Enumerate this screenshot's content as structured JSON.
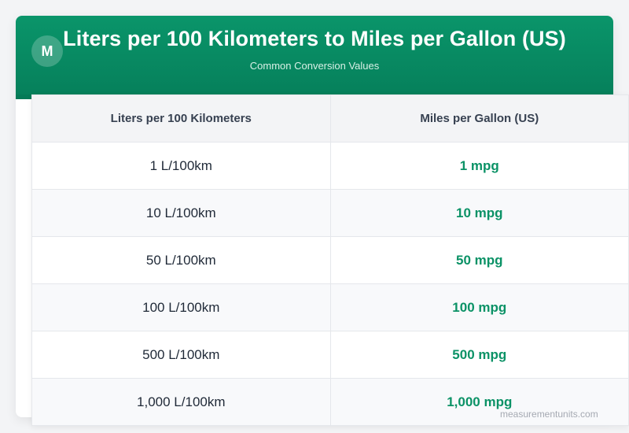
{
  "header": {
    "logo_letter": "M",
    "title": "Liters per 100 Kilometers to Miles per Gallon (US)",
    "subtitle": "Common Conversion Values",
    "accent_color": "#0a956a"
  },
  "table": {
    "columns": [
      "Liters per 100 Kilometers",
      "Miles per Gallon (US)"
    ],
    "rows": [
      {
        "lkm": "1 L/100km",
        "mpg": "1 mpg"
      },
      {
        "lkm": "10 L/100km",
        "mpg": "10 mpg"
      },
      {
        "lkm": "50 L/100km",
        "mpg": "50 mpg"
      },
      {
        "lkm": "100 L/100km",
        "mpg": "100 mpg"
      },
      {
        "lkm": "500 L/100km",
        "mpg": "500 mpg"
      },
      {
        "lkm": "1,000 L/100km",
        "mpg": "1,000 mpg"
      }
    ]
  },
  "footer": {
    "watermark": "measurementunits.com"
  }
}
